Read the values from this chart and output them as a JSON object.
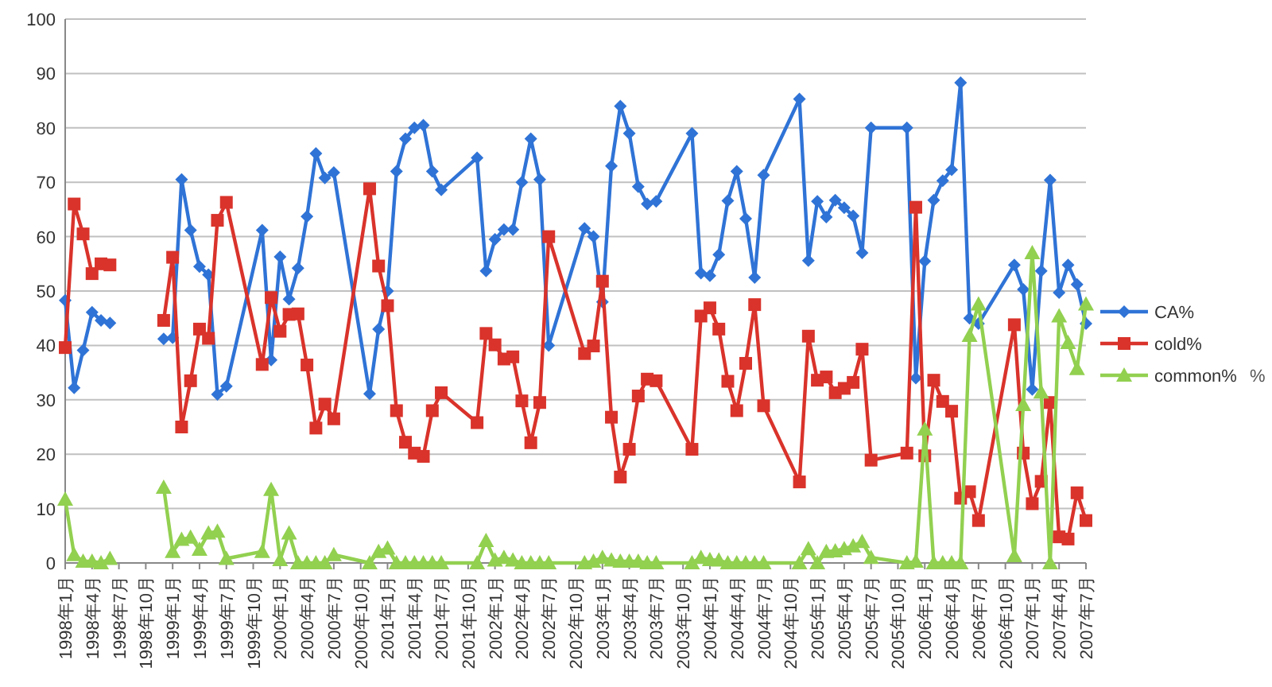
{
  "chart_data": {
    "type": "line",
    "x": [
      "1998-01",
      "1998-02",
      "1998-03",
      "1998-04",
      "1998-05",
      "1998-06",
      "1998-09",
      "1998-12",
      "1999-01",
      "1999-02",
      "1999-03",
      "1999-04",
      "1999-05",
      "1999-06",
      "1999-07",
      "1999-11",
      "1999-12",
      "2000-01",
      "2000-02",
      "2000-03",
      "2000-04",
      "2000-05",
      "2000-06",
      "2000-07",
      "2000-11",
      "2000-12",
      "2001-01",
      "2001-02",
      "2001-03",
      "2001-04",
      "2001-05",
      "2001-06",
      "2001-07",
      "2001-11",
      "2001-12",
      "2002-01",
      "2002-02",
      "2002-03",
      "2002-04",
      "2002-05",
      "2002-06",
      "2002-07",
      "2002-11",
      "2002-12",
      "2003-01",
      "2003-02",
      "2003-03",
      "2003-04",
      "2003-05",
      "2003-06",
      "2003-07",
      "2003-11",
      "2003-12",
      "2004-01",
      "2004-02",
      "2004-03",
      "2004-04",
      "2004-05",
      "2004-06",
      "2004-07",
      "2004-11",
      "2004-12",
      "2005-01",
      "2005-02",
      "2005-03",
      "2005-04",
      "2005-05",
      "2005-06",
      "2005-07",
      "2005-11",
      "2005-12",
      "2006-01",
      "2006-02",
      "2006-03",
      "2006-04",
      "2006-05",
      "2006-06",
      "2006-07",
      "2006-11",
      "2006-12",
      "2007-01",
      "2007-02",
      "2007-03",
      "2007-04",
      "2007-05",
      "2007-06",
      "2007-07"
    ],
    "series": [
      {
        "name": "CA%",
        "color": "#2f73d6",
        "marker": "diamond",
        "values": [
          48.3,
          32.2,
          39.1,
          46.1,
          44.6,
          44.1,
          null,
          41.2,
          41.4,
          70.5,
          61.2,
          54.5,
          53,
          31,
          32.5,
          61.2,
          37.3,
          56.3,
          48.5,
          54.2,
          63.7,
          75.3,
          70.8,
          71.8,
          31.1,
          43,
          50,
          72,
          78,
          80,
          80.5,
          72,
          68.6,
          74.5,
          53.7,
          59.5,
          61.3,
          61.3,
          70,
          78,
          70.5,
          40,
          61.5,
          60,
          48,
          73,
          84,
          79,
          69.2,
          66,
          66.5,
          79,
          53.3,
          52.8,
          56.7,
          66.6,
          72,
          63.3,
          52.5,
          71.3,
          85.3,
          55.6,
          66.5,
          63.6,
          66.7,
          65.3,
          63.8,
          57,
          80,
          80,
          34,
          55.5,
          66.7,
          70.3,
          72.3,
          88.3,
          45,
          44,
          54.8,
          50.3,
          31.9,
          53.7,
          70.4,
          49.7,
          54.8,
          51.2,
          44
        ]
      },
      {
        "name": "cold%",
        "color": "#d9332b",
        "marker": "square",
        "values": [
          39.6,
          66,
          60.5,
          53.2,
          55,
          54.8,
          null,
          44.6,
          56.2,
          25,
          33.5,
          43,
          41.3,
          63,
          66.3,
          36.5,
          48.8,
          42.6,
          45.7,
          45.8,
          36.4,
          24.8,
          29.2,
          26.5,
          68.8,
          54.6,
          47.3,
          28,
          22.2,
          20.2,
          19.6,
          28,
          31.3,
          25.8,
          42.2,
          40.1,
          37.5,
          37.9,
          29.8,
          22.1,
          29.5,
          60,
          38.5,
          39.9,
          51.8,
          26.8,
          15.8,
          20.9,
          30.7,
          33.8,
          33.5,
          20.9,
          45.4,
          46.9,
          43,
          33.4,
          28,
          36.7,
          47.5,
          28.9,
          14.9,
          41.7,
          33.6,
          34.2,
          31.3,
          32.1,
          33.2,
          39.3,
          18.9,
          20.2,
          65.4,
          19.7,
          33.6,
          29.7,
          27.9,
          11.9,
          13.1,
          7.8,
          43.8,
          20.2,
          10.9,
          15,
          29.5,
          4.8,
          4.4,
          12.9,
          7.8
        ]
      },
      {
        "name": "common%",
        "color": "#92d050",
        "marker": "triangle",
        "values": [
          11.7,
          1.5,
          0.3,
          0.3,
          0,
          0.8,
          null,
          13.9,
          2.1,
          4.3,
          4.7,
          2.5,
          5.5,
          5.8,
          0.8,
          2.1,
          13.5,
          0.6,
          5.5,
          0,
          0,
          0,
          0,
          1.5,
          0,
          2.1,
          2.7,
          0,
          0,
          0,
          0,
          0,
          0,
          0,
          4.1,
          0.5,
          1,
          0.5,
          0,
          0,
          0,
          0,
          0,
          0.3,
          1,
          0.5,
          0.3,
          0.3,
          0.3,
          0,
          0,
          0,
          1,
          0.6,
          0.5,
          0,
          0,
          0,
          0,
          0,
          0,
          2.6,
          0,
          2.1,
          2.2,
          2.6,
          3.1,
          3.9,
          1,
          0,
          0.3,
          24.6,
          0,
          0,
          0,
          0,
          41.8,
          47.6,
          1.3,
          29.1,
          57,
          31.4,
          0,
          45.4,
          40.5,
          35.7,
          47.6
        ]
      }
    ],
    "xlim": [
      "1998-01",
      "2007-07"
    ],
    "xticks": [
      {
        "value": "1998-01",
        "label": "1998年1月"
      },
      {
        "value": "1998-04",
        "label": "1998年4月"
      },
      {
        "value": "1998-07",
        "label": "1998年7月"
      },
      {
        "value": "1998-10",
        "label": "1998年10月"
      },
      {
        "value": "1999-01",
        "label": "1999年1月"
      },
      {
        "value": "1999-04",
        "label": "1999年4月"
      },
      {
        "value": "1999-07",
        "label": "1999年7月"
      },
      {
        "value": "1999-10",
        "label": "1999年10月"
      },
      {
        "value": "2000-01",
        "label": "2000年1月"
      },
      {
        "value": "2000-04",
        "label": "2000年4月"
      },
      {
        "value": "2000-07",
        "label": "2000年7月"
      },
      {
        "value": "2000-10",
        "label": "2000年10月"
      },
      {
        "value": "2001-01",
        "label": "2001年1月"
      },
      {
        "value": "2001-04",
        "label": "2001年4月"
      },
      {
        "value": "2001-07",
        "label": "2001年7月"
      },
      {
        "value": "2001-10",
        "label": "2001年10月"
      },
      {
        "value": "2002-01",
        "label": "2002年1月"
      },
      {
        "value": "2002-04",
        "label": "2002年4月"
      },
      {
        "value": "2002-07",
        "label": "2002年7月"
      },
      {
        "value": "2002-10",
        "label": "2002年10月"
      },
      {
        "value": "2003-01",
        "label": "2003年1月"
      },
      {
        "value": "2003-04",
        "label": "2003年4月"
      },
      {
        "value": "2003-07",
        "label": "2003年7月"
      },
      {
        "value": "2003-10",
        "label": "2003年10月"
      },
      {
        "value": "2004-01",
        "label": "2004年1月"
      },
      {
        "value": "2004-04",
        "label": "2004年4月"
      },
      {
        "value": "2004-07",
        "label": "2004年7月"
      },
      {
        "value": "2004-10",
        "label": "2004年10月"
      },
      {
        "value": "2005-01",
        "label": "2005年1月"
      },
      {
        "value": "2005-04",
        "label": "2005年4月"
      },
      {
        "value": "2005-07",
        "label": "2005年7月"
      },
      {
        "value": "2005-10",
        "label": "2005年10月"
      },
      {
        "value": "2006-01",
        "label": "2006年1月"
      },
      {
        "value": "2006-04",
        "label": "2006年4月"
      },
      {
        "value": "2006-07",
        "label": "2006年7月"
      },
      {
        "value": "2006-10",
        "label": "2006年10月"
      },
      {
        "value": "2007-01",
        "label": "2007年1月"
      },
      {
        "value": "2007-04",
        "label": "2007年4月"
      },
      {
        "value": "2007-07",
        "label": "2007年7月"
      }
    ],
    "ylim": [
      0,
      100
    ],
    "yticks": [
      0,
      10,
      20,
      30,
      40,
      50,
      60,
      70,
      80,
      90,
      100
    ],
    "grid": "y",
    "legend": "right",
    "line_style": "solid",
    "annotations": [
      "%"
    ]
  }
}
